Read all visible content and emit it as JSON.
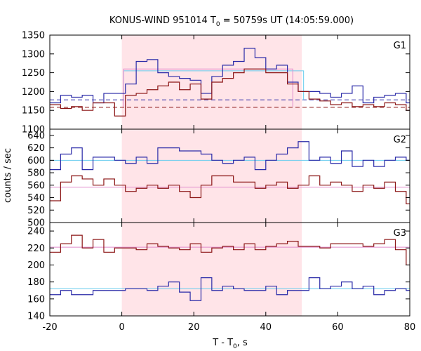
{
  "chart_data": {
    "type": "line",
    "title_main": "KONUS-WIND 951014 T",
    "title_sub": "0",
    "title_rest": " = 50759s UT (14:05:59.000)",
    "xlabel_main": "T - T",
    "xlabel_sub": "0",
    "xlabel_rest": ", s",
    "ylabel": "counts / sec",
    "xlim": [
      -20,
      80
    ],
    "x_ticks": [
      -20,
      0,
      20,
      40,
      60,
      80
    ],
    "x_tick_labels": [
      "-20",
      "0",
      "20",
      "40",
      "60",
      "80"
    ],
    "highlight_interval": [
      0,
      50
    ],
    "bin_edges": [
      -20,
      -17,
      -14,
      -11,
      -8,
      -5,
      -2,
      1,
      4,
      7,
      10,
      13,
      16,
      19,
      22,
      25,
      28,
      31,
      34,
      37,
      40,
      43,
      46,
      49,
      52,
      55,
      58,
      61,
      64,
      67,
      70,
      73,
      76,
      79,
      80
    ],
    "colors": {
      "blue_series": "#2a2aa8",
      "red_series": "#8b1515",
      "cyan_fit": "#66ccee",
      "pink_fit": "#e08acc",
      "highlight": "#ffe4e8"
    },
    "panels": [
      {
        "label": "G1",
        "ylim": [
          1100,
          1350
        ],
        "y_ticks": [
          1100,
          1150,
          1200,
          1250,
          1300,
          1350
        ],
        "y_tick_labels": [
          "1100",
          "1150",
          "1200",
          "1250",
          "1300",
          "1350"
        ],
        "series": [
          {
            "color": "blue",
            "values": [
              1170,
              1190,
              1185,
              1190,
              1170,
              1195,
              1195,
              1220,
              1280,
              1285,
              1250,
              1240,
              1235,
              1230,
              1195,
              1240,
              1270,
              1280,
              1315,
              1290,
              1260,
              1270,
              1225,
              1200,
              1200,
              1195,
              1185,
              1195,
              1215,
              1170,
              1185,
              1190,
              1195,
              1170
            ]
          },
          {
            "color": "red",
            "values": [
              1165,
              1155,
              1160,
              1150,
              1170,
              1170,
              1135,
              1190,
              1195,
              1205,
              1215,
              1225,
              1205,
              1220,
              1180,
              1225,
              1235,
              1250,
              1260,
              1260,
              1250,
              1250,
              1220,
              1200,
              1180,
              1175,
              1165,
              1170,
              1160,
              1165,
              1160,
              1170,
              1165,
              1150
            ]
          }
        ],
        "dashed_levels": [
          {
            "color": "blue",
            "value": 1178
          },
          {
            "color": "red",
            "value": 1158
          }
        ],
        "fit_boxes": [
          {
            "color": "cyan",
            "x": [
              0.5,
              50.5
            ],
            "y": 1255,
            "base": 1178
          },
          {
            "color": "pink",
            "x": [
              0.5,
              47.5
            ],
            "y": 1260,
            "base": 1160
          }
        ]
      },
      {
        "label": "G2",
        "ylim": [
          500,
          650
        ],
        "y_ticks": [
          500,
          520,
          540,
          560,
          580,
          600,
          620,
          640
        ],
        "y_tick_labels": [
          "500",
          "520",
          "540",
          "560",
          "580",
          "600",
          "620",
          "640"
        ],
        "series": [
          {
            "color": "blue",
            "values": [
              585,
              610,
              620,
              585,
              605,
              605,
              600,
              595,
              605,
              595,
              620,
              620,
              615,
              615,
              610,
              600,
              595,
              600,
              605,
              585,
              600,
              610,
              620,
              630,
              600,
              605,
              595,
              615,
              590,
              600,
              590,
              600,
              605,
              600
            ]
          },
          {
            "color": "red",
            "values": [
              535,
              565,
              575,
              570,
              560,
              570,
              560,
              550,
              555,
              560,
              555,
              560,
              550,
              540,
              560,
              575,
              575,
              565,
              565,
              555,
              560,
              565,
              555,
              560,
              575,
              560,
              565,
              560,
              550,
              560,
              555,
              565,
              550,
              530
            ]
          }
        ],
        "fit_lines": [
          {
            "color": "cyan",
            "value": 600
          },
          {
            "color": "pink",
            "value": 557
          }
        ]
      },
      {
        "label": "G3",
        "ylim": [
          140,
          250
        ],
        "y_ticks": [
          140,
          160,
          180,
          200,
          220,
          240
        ],
        "y_tick_labels": [
          "140",
          "160",
          "180",
          "200",
          "220",
          "240"
        ],
        "series": [
          {
            "color": "blue",
            "values": [
              165,
              170,
              165,
              165,
              170,
              170,
              170,
              172,
              172,
              170,
              175,
              180,
              168,
              158,
              185,
              170,
              175,
              172,
              170,
              170,
              175,
              165,
              170,
              170,
              185,
              172,
              175,
              180,
              172,
              175,
              165,
              170,
              172,
              170
            ]
          },
          {
            "color": "red",
            "values": [
              215,
              225,
              235,
              220,
              230,
              215,
              220,
              220,
              218,
              225,
              222,
              220,
              218,
              225,
              215,
              220,
              222,
              218,
              225,
              218,
              222,
              225,
              228,
              222,
              222,
              220,
              225,
              225,
              225,
              222,
              225,
              230,
              218,
              200
            ]
          }
        ],
        "fit_lines": [
          {
            "color": "cyan",
            "value": 172
          },
          {
            "color": "pink",
            "value": 221
          }
        ]
      }
    ]
  }
}
